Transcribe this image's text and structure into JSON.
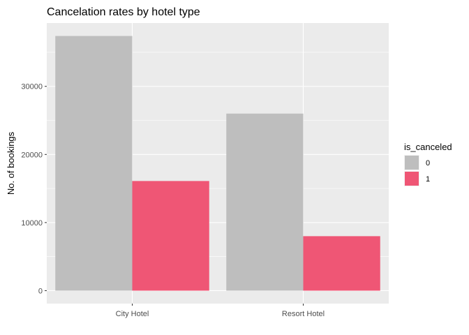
{
  "chart_data": {
    "type": "bar",
    "title": "Cancelation rates by hotel type",
    "xlabel": "",
    "ylabel": "No. of bookings",
    "categories": [
      "City Hotel",
      "Resort Hotel"
    ],
    "series": [
      {
        "name": "0",
        "values": [
          37400,
          26000
        ],
        "color": "#BEBEBE"
      },
      {
        "name": "1",
        "values": [
          16100,
          8000
        ],
        "color": "#EF5675"
      }
    ],
    "ylim": [
      -1900,
      39300
    ],
    "yticks": [
      0,
      10000,
      20000,
      30000
    ],
    "ytick_labels": [
      "0",
      "10000",
      "20000",
      "30000"
    ],
    "grid": true,
    "panel_background": "#EBEBEB",
    "grid_color": "#FFFFFF",
    "legend": {
      "title": "is_canceled",
      "placement": "right"
    }
  }
}
